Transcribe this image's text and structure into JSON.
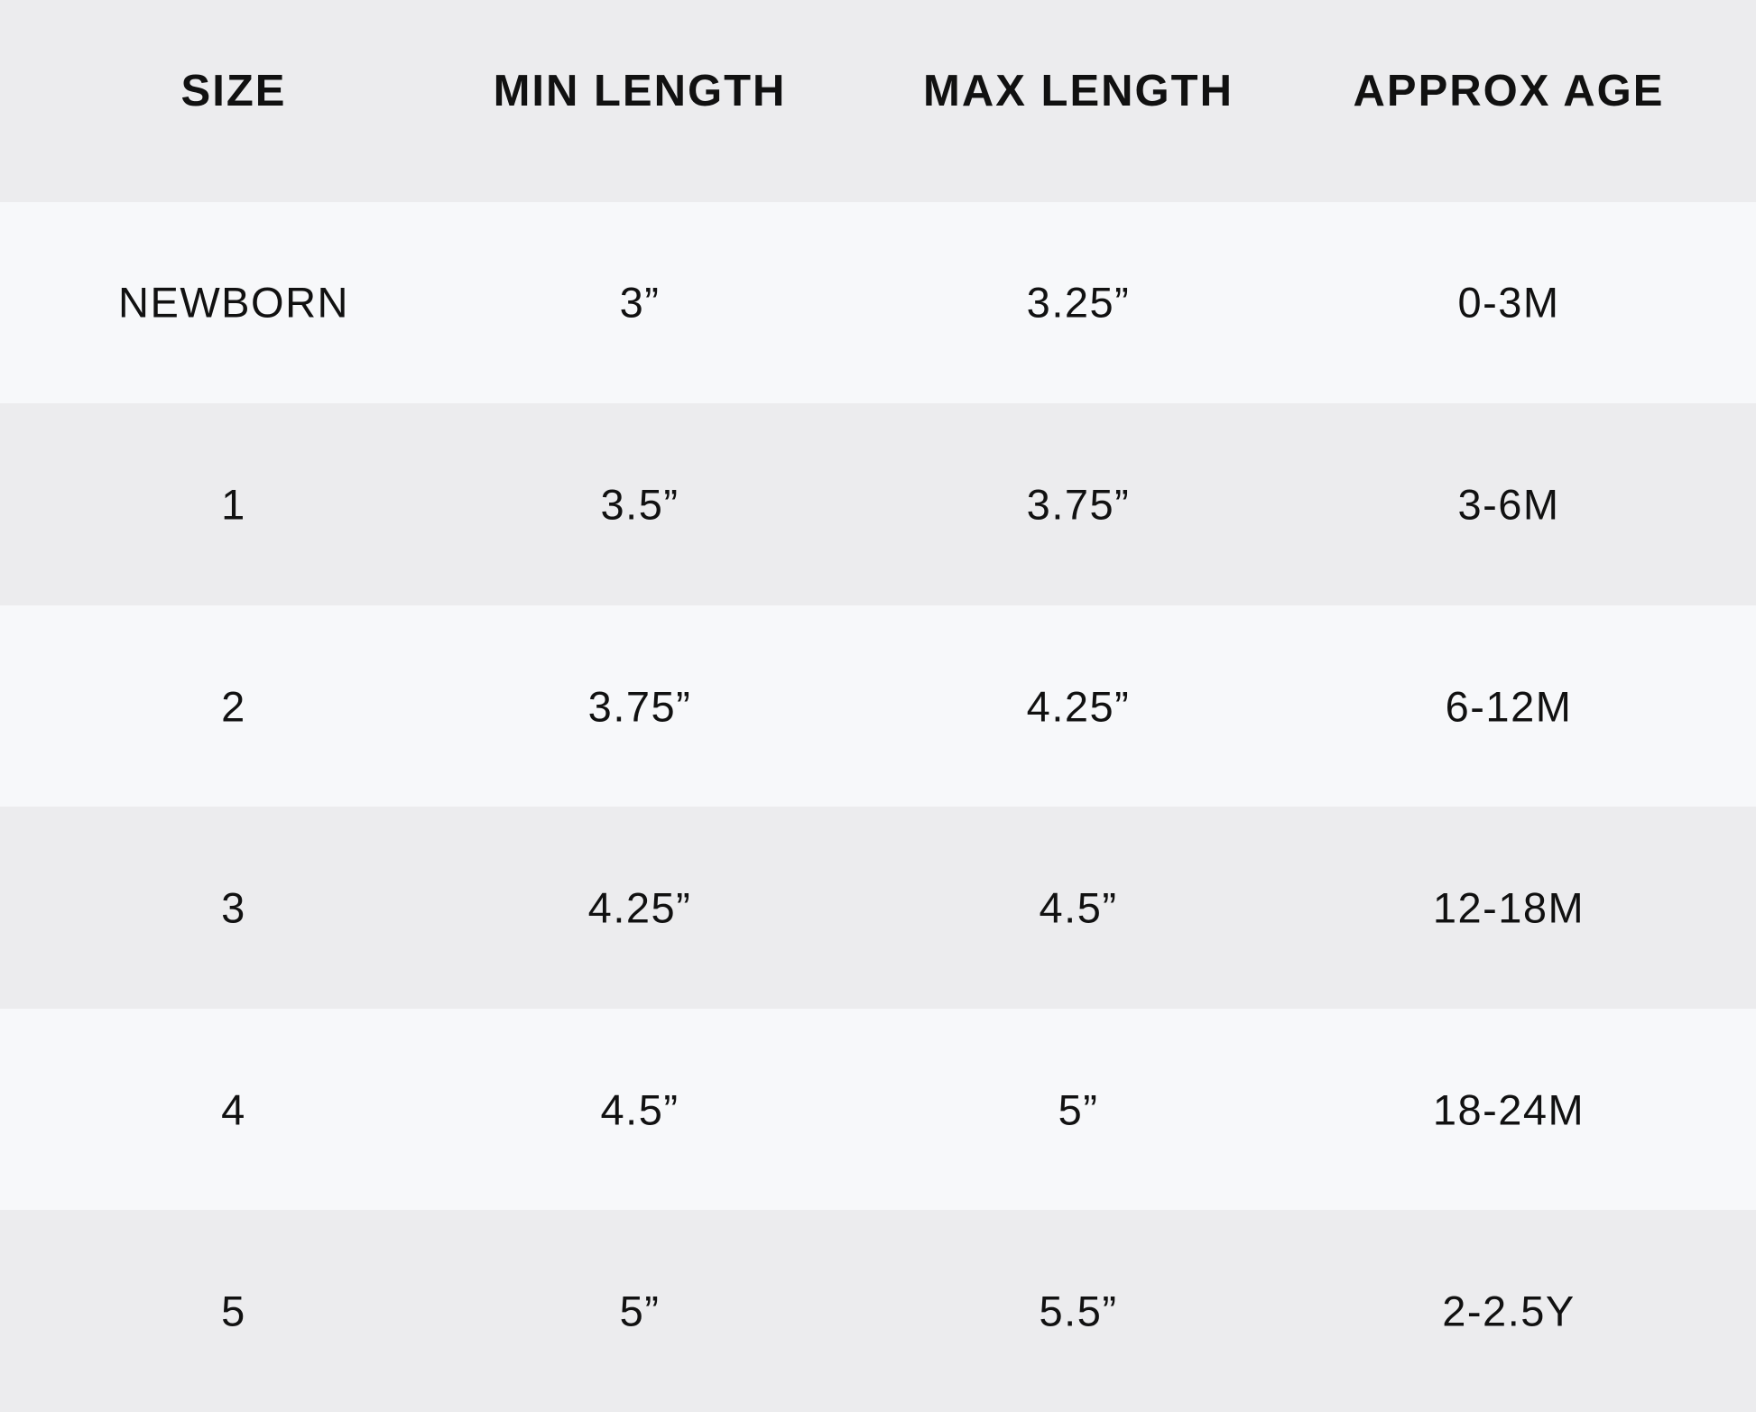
{
  "table": {
    "header": [
      "SIZE",
      "MIN LENGTH",
      "MAX LENGTH",
      "APPROX AGE"
    ],
    "rows": [
      [
        "NEWBORN",
        "3”",
        "3.25”",
        "0-3M"
      ],
      [
        "1",
        "3.5”",
        "3.75”",
        "3-6M"
      ],
      [
        "2",
        "3.75”",
        "4.25”",
        "6-12M"
      ],
      [
        "3",
        "4.25”",
        "4.5”",
        "12-18M"
      ],
      [
        "4",
        "4.5”",
        "5”",
        "18-24M"
      ],
      [
        "5",
        "5”",
        "5.5”",
        "2-2.5Y"
      ]
    ]
  }
}
